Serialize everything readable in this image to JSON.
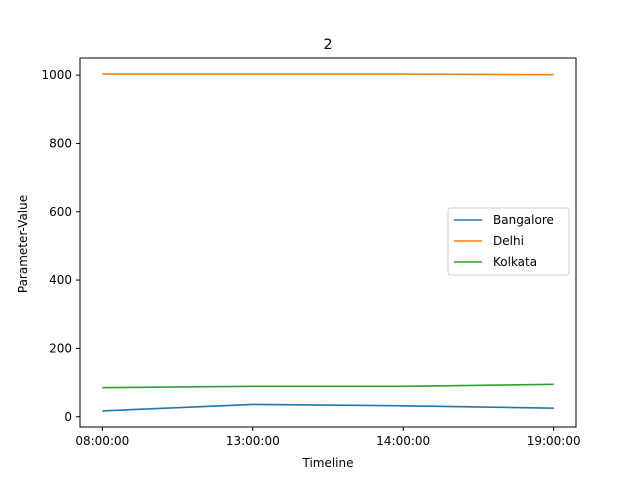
{
  "chart_data": {
    "type": "line",
    "title": "2",
    "xlabel": "Timeline",
    "ylabel": "Parameter-Value",
    "categories": [
      "08:00:00",
      "13:00:00",
      "14:00:00",
      "19:00:00"
    ],
    "ylim": [
      -30,
      1050
    ],
    "yticks": [
      0,
      200,
      400,
      600,
      800,
      1000
    ],
    "grid": false,
    "legend_position": "center-right",
    "series": [
      {
        "name": "Bangalore",
        "color": "#1f77b4",
        "values": [
          17,
          36,
          32,
          25
        ]
      },
      {
        "name": "Delhi",
        "color": "#ff7f0e",
        "values": [
          1003,
          1003,
          1003,
          1001
        ]
      },
      {
        "name": "Kolkata",
        "color": "#2ca02c",
        "values": [
          85,
          89,
          89,
          95
        ]
      }
    ]
  }
}
